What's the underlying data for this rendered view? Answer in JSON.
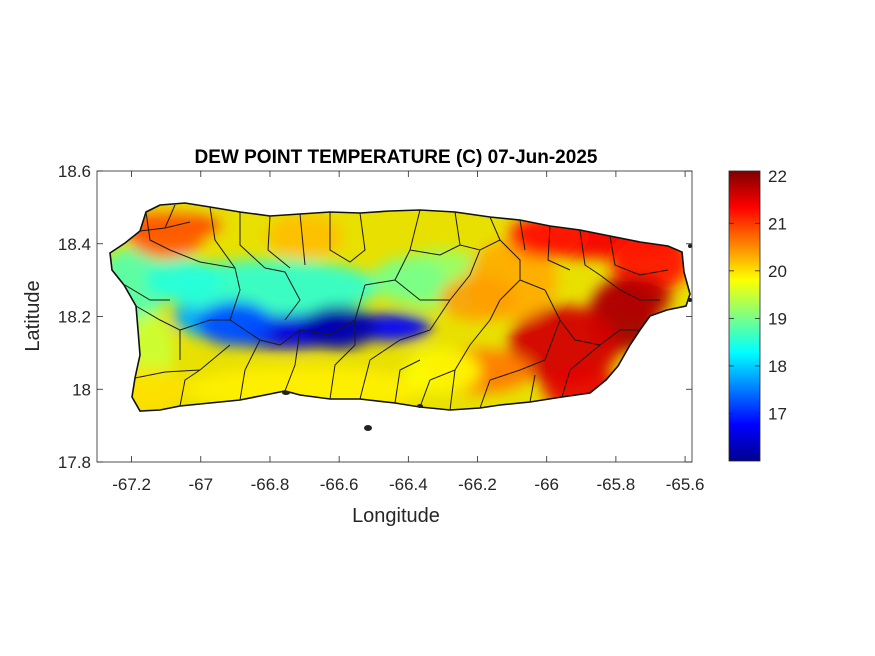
{
  "chart_data": {
    "type": "heatmap",
    "title": "DEW POINT TEMPERATURE (C) 07-Jun-2025",
    "xlabel": "Longitude",
    "ylabel": "Latitude",
    "xlim": [
      -67.3,
      -65.58
    ],
    "ylim": [
      17.8,
      18.6
    ],
    "xticks": [
      -67.2,
      -67,
      -66.8,
      -66.6,
      -66.4,
      -66.2,
      -66,
      -65.8,
      -65.6
    ],
    "xtick_labels": [
      "-67.2",
      "-67",
      "-66.8",
      "-66.6",
      "-66.4",
      "-66.2",
      "-66",
      "-65.8",
      "-65.6"
    ],
    "yticks": [
      18.6,
      18.4,
      18.2,
      18,
      17.8
    ],
    "ytick_labels": [
      "18.6",
      "18.4",
      "18.2",
      "18",
      "17.8"
    ],
    "grid": false,
    "colorbar": {
      "range": [
        16.0,
        22.1
      ],
      "ticks": [
        22,
        21,
        20,
        19,
        18,
        17
      ],
      "tick_labels": [
        "22",
        "21",
        "20",
        "19",
        "18",
        "17"
      ],
      "colormap": "jet"
    },
    "region": "Puerto Rico",
    "observations": [
      {
        "lon": -66.6,
        "lat": 18.17,
        "dewpoint": 16.2
      },
      {
        "lon": -66.9,
        "lat": 18.18,
        "dewpoint": 17.2
      },
      {
        "lon": -67.05,
        "lat": 18.3,
        "dewpoint": 18.5
      },
      {
        "lon": -67.1,
        "lat": 18.42,
        "dewpoint": 20.8
      },
      {
        "lon": -67.15,
        "lat": 18.0,
        "dewpoint": 20.0
      },
      {
        "lon": -66.7,
        "lat": 18.42,
        "dewpoint": 20.2
      },
      {
        "lon": -66.4,
        "lat": 18.3,
        "dewpoint": 19.0
      },
      {
        "lon": -66.3,
        "lat": 18.05,
        "dewpoint": 19.8
      },
      {
        "lon": -66.0,
        "lat": 18.42,
        "dewpoint": 21.2
      },
      {
        "lon": -65.75,
        "lat": 18.25,
        "dewpoint": 21.8
      },
      {
        "lon": -65.9,
        "lat": 18.0,
        "dewpoint": 21.5
      },
      {
        "lon": -66.2,
        "lat": 18.25,
        "dewpoint": 20.4
      }
    ]
  }
}
